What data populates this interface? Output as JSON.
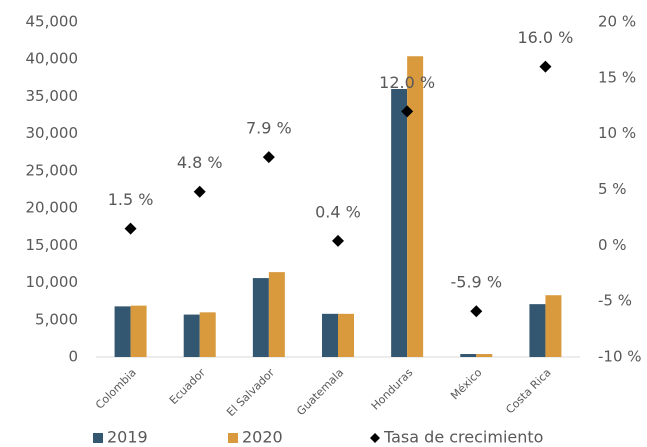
{
  "chart_data": {
    "type": "bar",
    "categories": [
      "Colombia",
      "Ecuador",
      "El Salvador",
      "Guatemala",
      "Honduras",
      "México",
      "Costa Rica"
    ],
    "series": [
      {
        "name": "2019",
        "color": "#335770",
        "values": [
          6800,
          5700,
          10600,
          5800,
          36000,
          400,
          7100
        ]
      },
      {
        "name": "2020",
        "color": "#d99a3e",
        "values": [
          6900,
          6000,
          11400,
          5800,
          40400,
          400,
          8300
        ]
      },
      {
        "name": "Tasa de crecimiento",
        "color": "#000000",
        "type": "scatter",
        "axis": "y2",
        "values": [
          1.5,
          4.8,
          7.9,
          0.4,
          12.0,
          -5.9,
          16.0
        ],
        "value_labels": [
          "1.5 %",
          "4.8 %",
          "7.9 %",
          "0.4 %",
          "12.0 %",
          "-5.9 %",
          "16.0 %"
        ]
      }
    ],
    "ylim": [
      0,
      45000
    ],
    "yticks": [
      0,
      {
        "value": 5000,
        "label": "5,000"
      },
      {
        "value": 10000,
        "label": "10,000"
      },
      {
        "value": 15000,
        "label": "15,000"
      },
      {
        "value": 20000,
        "label": "20,000"
      },
      {
        "value": 25000,
        "label": "25,000"
      },
      {
        "value": 30000,
        "label": "30,000"
      },
      {
        "value": 35000,
        "label": "35,000"
      },
      {
        "value": 40000,
        "label": "40,000"
      },
      {
        "value": 45000,
        "label": "45,000"
      }
    ],
    "y2lim": [
      -10,
      20
    ],
    "y2ticks": [
      {
        "value": -10,
        "label": "-10 %"
      },
      {
        "value": -5,
        "label": "-5 %"
      },
      {
        "value": 0,
        "label": "0 %"
      },
      {
        "value": 5,
        "label": "5 %"
      },
      {
        "value": 10,
        "label": "10 %"
      },
      {
        "value": 15,
        "label": "15 %"
      },
      {
        "value": 20,
        "label": "20 %"
      }
    ],
    "legend": "bottom",
    "grid": false
  }
}
